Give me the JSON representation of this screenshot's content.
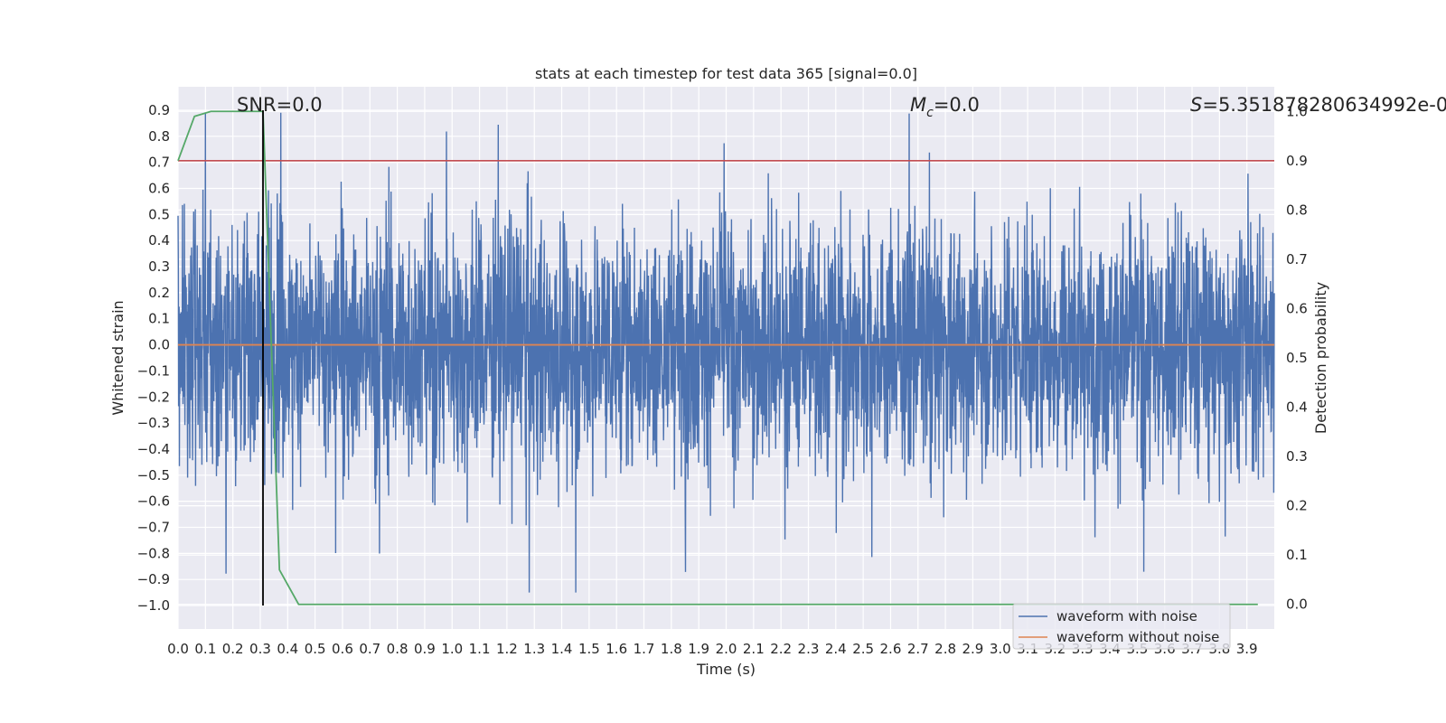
{
  "chart_data": {
    "type": "line",
    "title": "stats at each timestep for test data 365 [signal=0.0]",
    "xlabel": "Time (s)",
    "ylabel": "Whitened strain",
    "y2label": "Detection probability",
    "xlim": [
      0.0,
      4.0
    ],
    "ylim": [
      -1.09,
      0.99
    ],
    "y2lim": [
      -0.05,
      1.05
    ],
    "xticks": [
      0.0,
      0.1,
      0.2,
      0.3,
      0.4,
      0.5,
      0.6,
      0.7,
      0.8,
      0.9,
      1.0,
      1.1,
      1.2,
      1.3,
      1.4,
      1.5,
      1.6,
      1.7,
      1.8,
      1.9,
      2.0,
      2.1,
      2.2,
      2.3,
      2.4,
      2.5,
      2.6,
      2.7,
      2.8,
      2.9,
      3.0,
      3.1,
      3.2,
      3.3,
      3.4,
      3.5,
      3.6,
      3.7,
      3.8,
      3.9
    ],
    "xtick_labels": [
      "0.0",
      "0.1",
      "0.2",
      "0.3",
      "0.4",
      "0.5",
      "0.6",
      "0.7",
      "0.8",
      "0.9",
      "1.0",
      "1.1",
      "1.2",
      "1.3",
      "1.4",
      "1.5",
      "1.6",
      "1.7",
      "1.8",
      "1.9",
      "2.0",
      "2.1",
      "2.2",
      "2.3",
      "2.4",
      "2.5",
      "2.6",
      "2.7",
      "2.8",
      "2.9",
      "3.0",
      "3.1",
      "3.2",
      "3.3",
      "3.4",
      "3.5",
      "3.6",
      "3.7",
      "3.8",
      "3.9"
    ],
    "yticks": [
      0.9,
      0.8,
      0.7,
      0.6,
      0.5,
      0.4,
      0.3,
      0.2,
      0.1,
      0.0,
      -0.1,
      -0.2,
      -0.3,
      -0.4,
      -0.5,
      -0.6,
      -0.7,
      -0.8,
      -0.9,
      -1.0
    ],
    "ytick_labels": [
      "0.9",
      "0.8",
      "0.7",
      "0.6",
      "0.5",
      "0.4",
      "0.3",
      "0.2",
      "0.1",
      "0.0",
      "−0.1",
      "−0.2",
      "−0.3",
      "−0.4",
      "−0.5",
      "−0.6",
      "−0.7",
      "−0.8",
      "−0.9",
      "−1.0"
    ],
    "y2ticks": [
      1.0,
      0.9,
      0.8,
      0.7,
      0.6,
      0.5,
      0.4,
      0.3,
      0.2,
      0.1,
      0.0
    ],
    "y2tick_labels": [
      "1.0",
      "0.9",
      "0.8",
      "0.7",
      "0.6",
      "0.5",
      "0.4",
      "0.3",
      "0.2",
      "0.1",
      "0.0"
    ],
    "series": [
      {
        "name": "waveform with noise",
        "color": "#4c72b0",
        "kind": "noise",
        "samples": 4000,
        "amplitude_envelope": 0.55,
        "y_range": [
          -0.95,
          0.89
        ]
      },
      {
        "name": "waveform without noise",
        "color": "#dd8452",
        "x": [
          0.0,
          4.0
        ],
        "y": [
          0.0,
          0.0
        ]
      },
      {
        "name": "detection probability",
        "color": "#55a868",
        "axis": "right",
        "x": [
          0.0,
          0.06,
          0.12,
          0.19,
          0.25,
          0.31,
          0.37,
          0.44,
          0.5,
          0.56,
          3.94
        ],
        "y": [
          0.9,
          0.99,
          1.0,
          1.0,
          1.0,
          1.0,
          0.07,
          0.0,
          0.0,
          0.0,
          0.0
        ]
      },
      {
        "name": "threshold",
        "color": "#c44e52",
        "axis": "right",
        "x": [
          0.0,
          4.0
        ],
        "y": [
          0.9,
          0.9
        ]
      }
    ],
    "vertical_marker": {
      "x": 0.31,
      "y_range": [
        -1.0,
        0.9
      ],
      "color": "#000000"
    },
    "annotations": [
      {
        "text": "SNR=0.0",
        "x": 0.2
      },
      {
        "text": "=0.0",
        "symbol": "M",
        "subscript": "c",
        "x": 2.6
      },
      {
        "text": "=5.351878280634992e-0",
        "symbol": "S",
        "x": 3.6
      }
    ],
    "legend": {
      "position": "lower-right",
      "entries": [
        {
          "label": "waveform with noise",
          "color": "#4c72b0"
        },
        {
          "label": "waveform without noise",
          "color": "#dd8452"
        }
      ]
    }
  }
}
